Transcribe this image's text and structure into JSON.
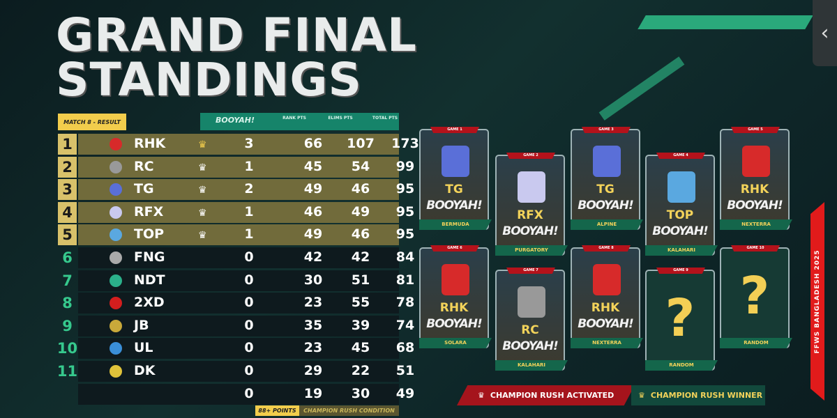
{
  "title": {
    "line1": "GRAND FINAL",
    "line2": "STANDINGS"
  },
  "match_badge": "MATCH 8 - RESULT",
  "columns": {
    "booyah": "BOOYAH!",
    "rank": "RANK PTS",
    "elims": "ELIMS PTS",
    "total": "TOTAL PTS"
  },
  "colors": {
    "winner_crown": "#f2cd4c",
    "top_row": "#716b3b",
    "accent_green": "#2fbf8a",
    "red": "#b4121b"
  },
  "standings": [
    {
      "rank": "1",
      "team": "RHK",
      "crown": "gold",
      "booyah": "3",
      "rank_pts": "66",
      "elims": "107",
      "total": "173",
      "logo": "#d72a2a"
    },
    {
      "rank": "2",
      "team": "RC",
      "crown": "white",
      "booyah": "1",
      "rank_pts": "45",
      "elims": "54",
      "total": "99",
      "logo": "#999999"
    },
    {
      "rank": "3",
      "team": "TG",
      "crown": "white",
      "booyah": "2",
      "rank_pts": "49",
      "elims": "46",
      "total": "95",
      "logo": "#5a6fd8"
    },
    {
      "rank": "4",
      "team": "RFX",
      "crown": "white",
      "booyah": "1",
      "rank_pts": "46",
      "elims": "49",
      "total": "95",
      "logo": "#c9c9ef"
    },
    {
      "rank": "5",
      "team": "TOP",
      "crown": "white",
      "booyah": "1",
      "rank_pts": "49",
      "elims": "46",
      "total": "95",
      "logo": "#5aa8e0"
    },
    {
      "rank": "6",
      "team": "FNG",
      "crown": "",
      "booyah": "0",
      "rank_pts": "42",
      "elims": "42",
      "total": "84",
      "logo": "#aaaaaa"
    },
    {
      "rank": "7",
      "team": "NDT",
      "crown": "",
      "booyah": "0",
      "rank_pts": "30",
      "elims": "51",
      "total": "81",
      "logo": "#2bb08a"
    },
    {
      "rank": "8",
      "team": "2XD",
      "crown": "",
      "booyah": "0",
      "rank_pts": "23",
      "elims": "55",
      "total": "78",
      "logo": "#d41e1e"
    },
    {
      "rank": "9",
      "team": "JB",
      "crown": "",
      "booyah": "0",
      "rank_pts": "35",
      "elims": "39",
      "total": "74",
      "logo": "#c9a93a"
    },
    {
      "rank": "10",
      "team": "UL",
      "crown": "",
      "booyah": "0",
      "rank_pts": "23",
      "elims": "45",
      "total": "68",
      "logo": "#3a8fd8"
    },
    {
      "rank": "11",
      "team": "DK",
      "crown": "",
      "booyah": "0",
      "rank_pts": "29",
      "elims": "22",
      "total": "51",
      "logo": "#e0c33a"
    },
    {
      "rank": "",
      "team": "",
      "crown": "",
      "booyah": "0",
      "rank_pts": "19",
      "elims": "30",
      "total": "49",
      "logo": ""
    }
  ],
  "footer": {
    "points": "88+ POINTS",
    "condition": "CHAMPION RUSH CONDITION"
  },
  "games": [
    {
      "label": "GAME 1",
      "team": "TG",
      "booyah": "BOOYAH!",
      "map": "BERMUDA",
      "logo": "#5a6fd8"
    },
    {
      "label": "GAME 2",
      "team": "RFX",
      "booyah": "BOOYAH!",
      "map": "PURGATORY",
      "logo": "#c9c9ef"
    },
    {
      "label": "GAME 3",
      "team": "TG",
      "booyah": "BOOYAH!",
      "map": "ALPINE",
      "logo": "#5a6fd8"
    },
    {
      "label": "GAME 4",
      "team": "TOP",
      "booyah": "BOOYAH!",
      "map": "KALAHARI",
      "logo": "#5aa8e0"
    },
    {
      "label": "GAME 5",
      "team": "RHK",
      "booyah": "BOOYAH!",
      "map": "NEXTERRA",
      "logo": "#d72a2a"
    },
    {
      "label": "GAME 6",
      "team": "RHK",
      "booyah": "BOOYAH!",
      "map": "SOLARA",
      "logo": "#d72a2a"
    },
    {
      "label": "GAME 7",
      "team": "RC",
      "booyah": "BOOYAH!",
      "map": "KALAHARI",
      "logo": "#999999"
    },
    {
      "label": "GAME 8",
      "team": "RHK",
      "booyah": "BOOYAH!",
      "map": "NEXTERRA",
      "logo": "#d72a2a"
    },
    {
      "label": "GAME 9",
      "team": "?",
      "booyah": "",
      "map": "RANDOM",
      "logo": ""
    },
    {
      "label": "GAME 10",
      "team": "?",
      "booyah": "",
      "map": "RANDOM",
      "logo": ""
    }
  ],
  "legend": {
    "activated": "CHAMPION RUSH ACTIVATED",
    "winner": "CHAMPION RUSH WINNER"
  },
  "event": "FFWS BANGLADESH 2025",
  "back_icon": "chevron-left-icon"
}
